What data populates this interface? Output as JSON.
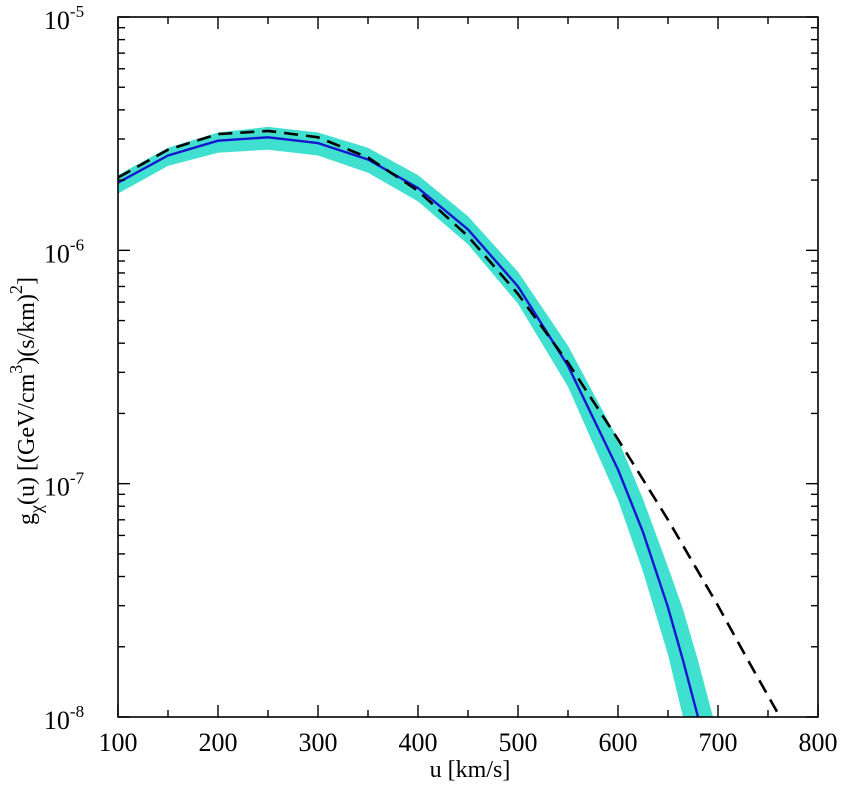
{
  "chart_data": {
    "type": "line",
    "title": "",
    "xlabel": "u [km/s]",
    "ylabel": {
      "base": "g",
      "sub": "χ",
      "text1": "(u) [(GeV/cm",
      "sup1": "3",
      "text2": ")(s/km)",
      "sup2": "2",
      "text3": "]"
    },
    "x_range": [
      100,
      800
    ],
    "y_range": [
      1e-08,
      1e-05
    ],
    "y_scale": "log",
    "grid": false,
    "x_ticks": [
      {
        "value": 100,
        "label": "100"
      },
      {
        "value": 200,
        "label": "200"
      },
      {
        "value": 300,
        "label": "300"
      },
      {
        "value": 400,
        "label": "400"
      },
      {
        "value": 500,
        "label": "500"
      },
      {
        "value": 600,
        "label": "600"
      },
      {
        "value": 700,
        "label": "700"
      },
      {
        "value": 800,
        "label": "800"
      }
    ],
    "y_ticks": [
      {
        "value": 1e-08,
        "base": "10",
        "exp": "-8"
      },
      {
        "value": 1e-07,
        "base": "10",
        "exp": "-7"
      },
      {
        "value": 1e-06,
        "base": "10",
        "exp": "-6"
      },
      {
        "value": 1e-05,
        "base": "10",
        "exp": "-5"
      }
    ],
    "series": [
      {
        "style": "band",
        "color": "#40e0d0",
        "x": [
          100,
          150,
          200,
          250,
          300,
          350,
          400,
          450,
          500,
          550,
          600,
          625,
          650,
          665,
          680,
          695
        ],
        "y_low": [
          1.75e-06,
          2.3e-06,
          2.62e-06,
          2.7e-06,
          2.55e-06,
          2.15e-06,
          1.62e-06,
          1.06e-06,
          5.9e-07,
          2.6e-07,
          8.5e-08,
          4.2e-08,
          1.85e-08,
          1e-08,
          null,
          null
        ],
        "y_high": [
          2.1e-06,
          2.75e-06,
          3.2e-06,
          3.38e-06,
          3.2e-06,
          2.75e-06,
          2.1e-06,
          1.4e-06,
          8.1e-07,
          3.9e-07,
          1.55e-07,
          8.6e-08,
          4.4e-08,
          2.9e-08,
          1.75e-08,
          1e-08
        ]
      },
      {
        "style": "solid",
        "color": "#1515d0",
        "x": [
          100,
          150,
          200,
          250,
          300,
          350,
          400,
          450,
          500,
          550,
          600,
          625,
          650,
          665,
          680
        ],
        "y": [
          1.95e-06,
          2.55e-06,
          2.95e-06,
          3.05e-06,
          2.88e-06,
          2.45e-06,
          1.85e-06,
          1.23e-06,
          7e-07,
          3.2e-07,
          1.15e-07,
          6.2e-08,
          2.95e-08,
          1.75e-08,
          1e-08
        ]
      },
      {
        "style": "dashed",
        "color": "#000000",
        "x": [
          100,
          150,
          200,
          250,
          300,
          350,
          400,
          450,
          500,
          550,
          600,
          650,
          700,
          730,
          762
        ],
        "y": [
          2.05e-06,
          2.7e-06,
          3.15e-06,
          3.25e-06,
          3.05e-06,
          2.5e-06,
          1.8e-06,
          1.15e-06,
          6.5e-07,
          3.3e-07,
          1.55e-07,
          7e-08,
          3e-08,
          1.75e-08,
          1e-08
        ]
      }
    ]
  }
}
